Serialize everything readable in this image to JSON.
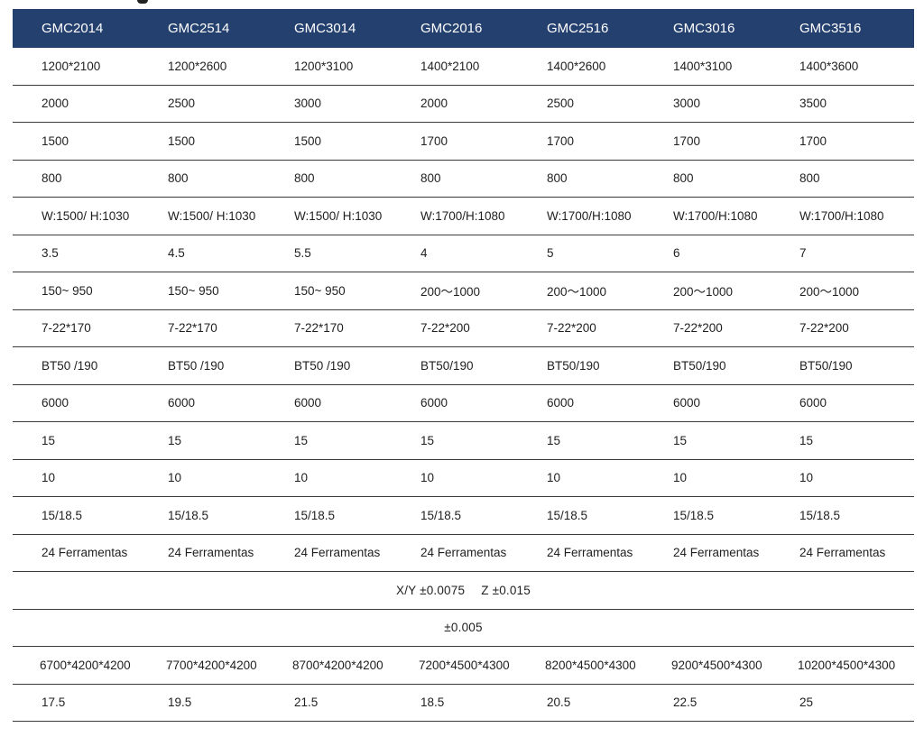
{
  "table": {
    "headers": [
      "GMC2014",
      "GMC2514",
      "GMC3014",
      "GMC2016",
      "GMC2516",
      "GMC3016",
      "GMC3516"
    ],
    "rows": [
      [
        "1200*2100",
        "1200*2600",
        "1200*3100",
        "1400*2100",
        "1400*2600",
        "1400*3100",
        "1400*3600"
      ],
      [
        "2000",
        "2500",
        "3000",
        "2000",
        "2500",
        "3000",
        "3500"
      ],
      [
        "1500",
        "1500",
        "1500",
        "1700",
        "1700",
        "1700",
        "1700"
      ],
      [
        "800",
        "800",
        "800",
        "800",
        "800",
        "800",
        "800"
      ],
      [
        "W:1500/ H:1030",
        "W:1500/ H:1030",
        "W:1500/ H:1030",
        "W:1700/H:1080",
        "W:1700/H:1080",
        "W:1700/H:1080",
        "W:1700/H:1080"
      ],
      [
        "3.5",
        "4.5",
        "5.5",
        "4",
        "5",
        "6",
        "7"
      ],
      [
        "150~ 950",
        "150~ 950",
        "150~ 950",
        "200～1000",
        "200～1000",
        "200～1000",
        "200～1000"
      ],
      [
        "7-22*170",
        "7-22*170",
        "7-22*170",
        "7-22*200",
        "7-22*200",
        "7-22*200",
        "7-22*200"
      ],
      [
        "BT50 /190",
        "BT50 /190",
        "BT50 /190",
        "BT50/190",
        "BT50/190",
        "BT50/190",
        "BT50/190"
      ],
      [
        "6000",
        "6000",
        "6000",
        "6000",
        "6000",
        "6000",
        "6000"
      ],
      [
        "15",
        "15",
        "15",
        "15",
        "15",
        "15",
        "15"
      ],
      [
        "10",
        "10",
        "10",
        "10",
        "10",
        "10",
        "10"
      ],
      [
        "15/18.5",
        "15/18.5",
        "15/18.5",
        "15/18.5",
        "15/18.5",
        "15/18.5",
        "15/18.5"
      ],
      [
        "24 Ferramentas",
        "24 Ferramentas",
        "24 Ferramentas",
        "24 Ferramentas",
        "24 Ferramentas",
        "24 Ferramentas",
        "24 Ferramentas"
      ]
    ],
    "positioning_accuracy_xy": "X/Y ±0.0075",
    "positioning_accuracy_z": "Z ±0.015",
    "repeatability": "±0.005",
    "rows_after": [
      [
        "6700*4200*4200",
        "7700*4200*4200",
        "8700*4200*4200",
        "7200*4500*4300",
        "8200*4500*4300",
        "9200*4500*4300",
        "10200*4500*4300"
      ],
      [
        "17.5",
        "19.5",
        "21.5",
        "18.5",
        "20.5",
        "22.5",
        "25"
      ]
    ],
    "header_bg": "#24406e"
  }
}
